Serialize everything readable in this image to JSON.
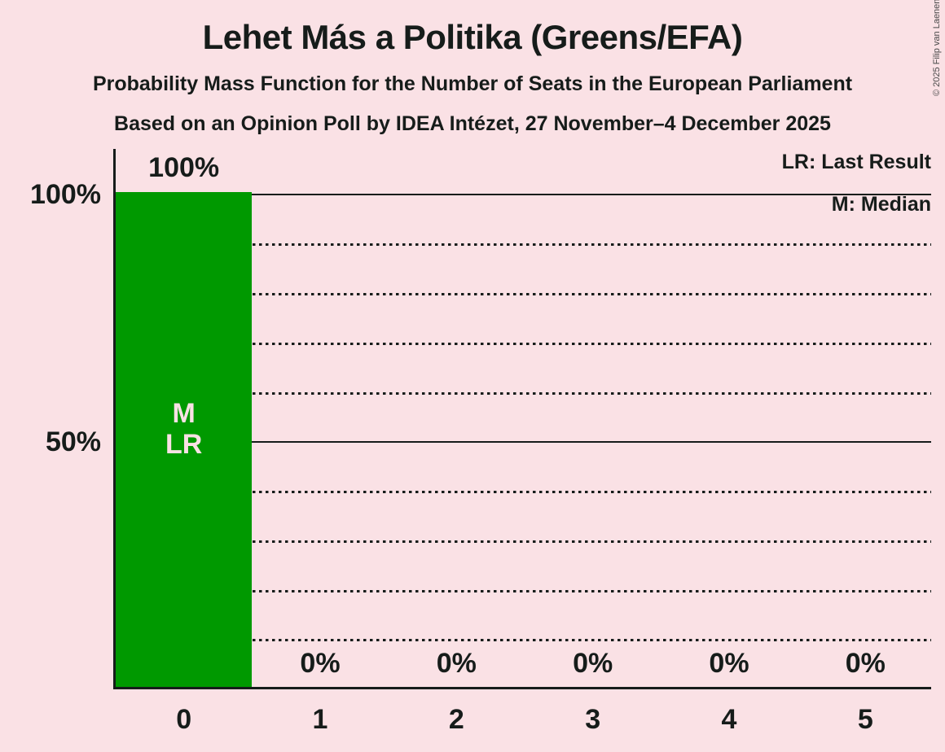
{
  "header": {
    "title": "Lehet Más a Politika (Greens/EFA)",
    "subtitle_line1": "Probability Mass Function for the Number of Seats in the European Parliament",
    "subtitle_line2": "Based on an Opinion Poll by IDEA Intézet, 27 November–4 December 2025"
  },
  "copyright": "© 2025 Filip van Laenen",
  "legend": {
    "last_result": "LR: Last Result",
    "median": "M: Median"
  },
  "y_axis": {
    "tick_100": "100%",
    "tick_50": "50%"
  },
  "chart_data": {
    "type": "bar",
    "title": "Lehet Más a Politika (Greens/EFA)",
    "subtitle": "Probability Mass Function for the Number of Seats in the European Parliament",
    "source_note": "Based on an Opinion Poll by IDEA Intézet, 27 November–4 December 2025",
    "categories": [
      "0",
      "1",
      "2",
      "3",
      "4",
      "5"
    ],
    "values": [
      100,
      0,
      0,
      0,
      0,
      0
    ],
    "value_labels": [
      "100%",
      "0%",
      "0%",
      "0%",
      "0%",
      "0%"
    ],
    "ylim": [
      0,
      100
    ],
    "ytick_labels": [
      "100%",
      "50%"
    ],
    "gridlines_solid_percent": [
      100,
      50
    ],
    "gridlines_dotted_percent": [
      90,
      80,
      70,
      60,
      40,
      30,
      20,
      10
    ],
    "bar_annotation_lines": [
      "M",
      "LR"
    ],
    "annotated_bar_category": "0",
    "legend_entries": [
      "LR: Last Result",
      "M: Median"
    ],
    "legend_position": "top-right",
    "colors": {
      "bar": "#009900",
      "background": "#FAE1E5",
      "text": "#161C1A"
    }
  }
}
